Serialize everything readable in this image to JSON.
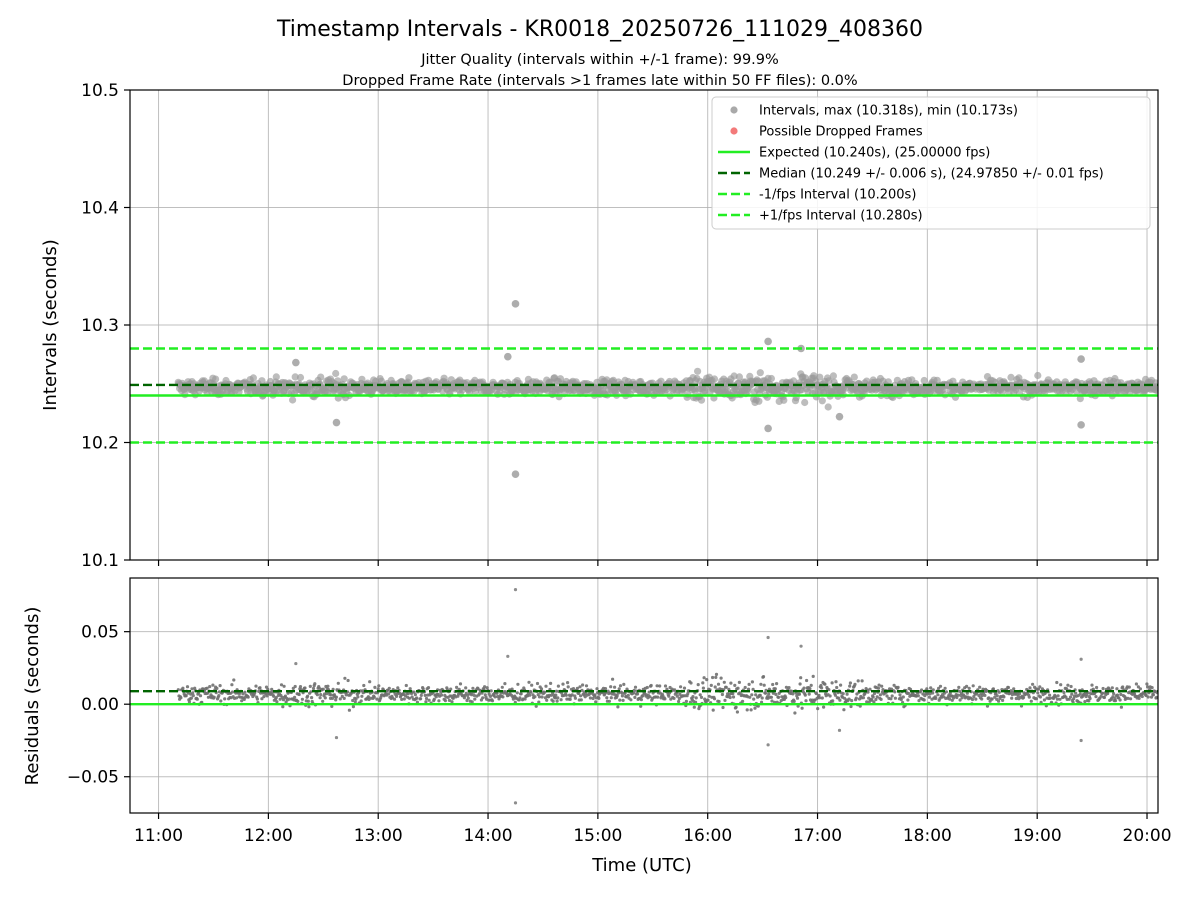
{
  "chart_data": {
    "type": "scatter",
    "title": "Timestamp Intervals - KR0018_20250726_111029_408360",
    "subtitle_lines": [
      "Jitter Quality (intervals within +/-1 frame): 99.9%",
      "Dropped Frame Rate (intervals >1 frames late within 50 FF files): 0.0%"
    ],
    "xlabel": "Time (UTC)",
    "x_ticks": [
      "11:00",
      "12:00",
      "13:00",
      "14:00",
      "15:00",
      "16:00",
      "17:00",
      "18:00",
      "19:00",
      "20:00"
    ],
    "x_tick_hours": [
      11,
      12,
      13,
      14,
      15,
      16,
      17,
      18,
      19,
      20
    ],
    "xlim_hours": [
      10.74,
      20.1
    ],
    "data_start_hour": 11.18,
    "data_end_hour": 20.1,
    "panels": [
      {
        "name": "intervals",
        "ylabel": "Intervals (seconds)",
        "ylim": [
          10.1,
          10.5
        ],
        "y_ticks": [
          "10.1",
          "10.2",
          "10.3",
          "10.4",
          "10.5"
        ],
        "y_tick_values": [
          10.1,
          10.2,
          10.3,
          10.4,
          10.5
        ],
        "grid": true,
        "legend_position": "top-right",
        "max_interval": 10.318,
        "min_interval": 10.173,
        "reference_lines": [
          {
            "key": "expected",
            "value": 10.24,
            "style": "solid",
            "color": "#22ee22"
          },
          {
            "key": "median",
            "value": 10.249,
            "style": "dashed",
            "color": "#006400"
          },
          {
            "key": "minus",
            "value": 10.2,
            "style": "dashed",
            "color": "#22ee22"
          },
          {
            "key": "plus",
            "value": 10.28,
            "style": "dashed",
            "color": "#22ee22"
          }
        ],
        "outliers": [
          {
            "x": 14.25,
            "y": 10.318
          },
          {
            "x": 14.25,
            "y": 10.173
          },
          {
            "x": 16.55,
            "y": 10.286
          },
          {
            "x": 16.55,
            "y": 10.212
          },
          {
            "x": 14.18,
            "y": 10.273
          },
          {
            "x": 12.62,
            "y": 10.217
          },
          {
            "x": 19.4,
            "y": 10.271
          },
          {
            "x": 19.4,
            "y": 10.215
          },
          {
            "x": 16.85,
            "y": 10.28
          },
          {
            "x": 17.2,
            "y": 10.222
          },
          {
            "x": 12.25,
            "y": 10.268
          }
        ]
      },
      {
        "name": "residuals",
        "ylabel": "Residuals (seconds)",
        "ylim": [
          -0.075,
          0.087
        ],
        "y_ticks": [
          "0.05",
          "0.00",
          "−0.05"
        ],
        "y_tick_values": [
          0.05,
          0.0,
          -0.05
        ],
        "grid": true,
        "reference_lines": [
          {
            "key": "zero",
            "value": 0.0,
            "style": "solid",
            "color": "#22ee22"
          },
          {
            "key": "median",
            "value": 0.009,
            "style": "dashed",
            "color": "#006400"
          }
        ],
        "outliers": [
          {
            "x": 14.25,
            "y": 0.079
          },
          {
            "x": 14.25,
            "y": -0.068
          },
          {
            "x": 16.55,
            "y": 0.046
          },
          {
            "x": 16.55,
            "y": -0.028
          },
          {
            "x": 14.18,
            "y": 0.033
          },
          {
            "x": 12.62,
            "y": -0.023
          },
          {
            "x": 19.4,
            "y": 0.031
          },
          {
            "x": 19.4,
            "y": -0.025
          },
          {
            "x": 16.85,
            "y": 0.04
          },
          {
            "x": 17.2,
            "y": -0.018
          },
          {
            "x": 12.25,
            "y": 0.028
          }
        ]
      }
    ],
    "legend": [
      {
        "label": "Intervals, max (10.318s), min (10.173s)",
        "marker": "dot",
        "color": "#a0a0a0"
      },
      {
        "label": "Possible Dropped Frames",
        "marker": "dot",
        "color": "#f26b6b"
      },
      {
        "label": "Expected (10.240s), (25.00000 fps)",
        "marker": "solid",
        "color": "#22ee22"
      },
      {
        "label": "Median (10.249 +/- 0.006 s), (24.97850 +/- 0.01 fps)",
        "marker": "dashed",
        "color": "#006400"
      },
      {
        "label": "-1/fps Interval (10.200s)",
        "marker": "dashed",
        "color": "#22ee22"
      },
      {
        "label": "+1/fps Interval (10.280s)",
        "marker": "dashed",
        "color": "#22ee22"
      }
    ],
    "colors": {
      "interval_points": "#808080",
      "dropped_frames": "#f26b6b",
      "expected": "#22ee22",
      "median": "#006400"
    }
  }
}
